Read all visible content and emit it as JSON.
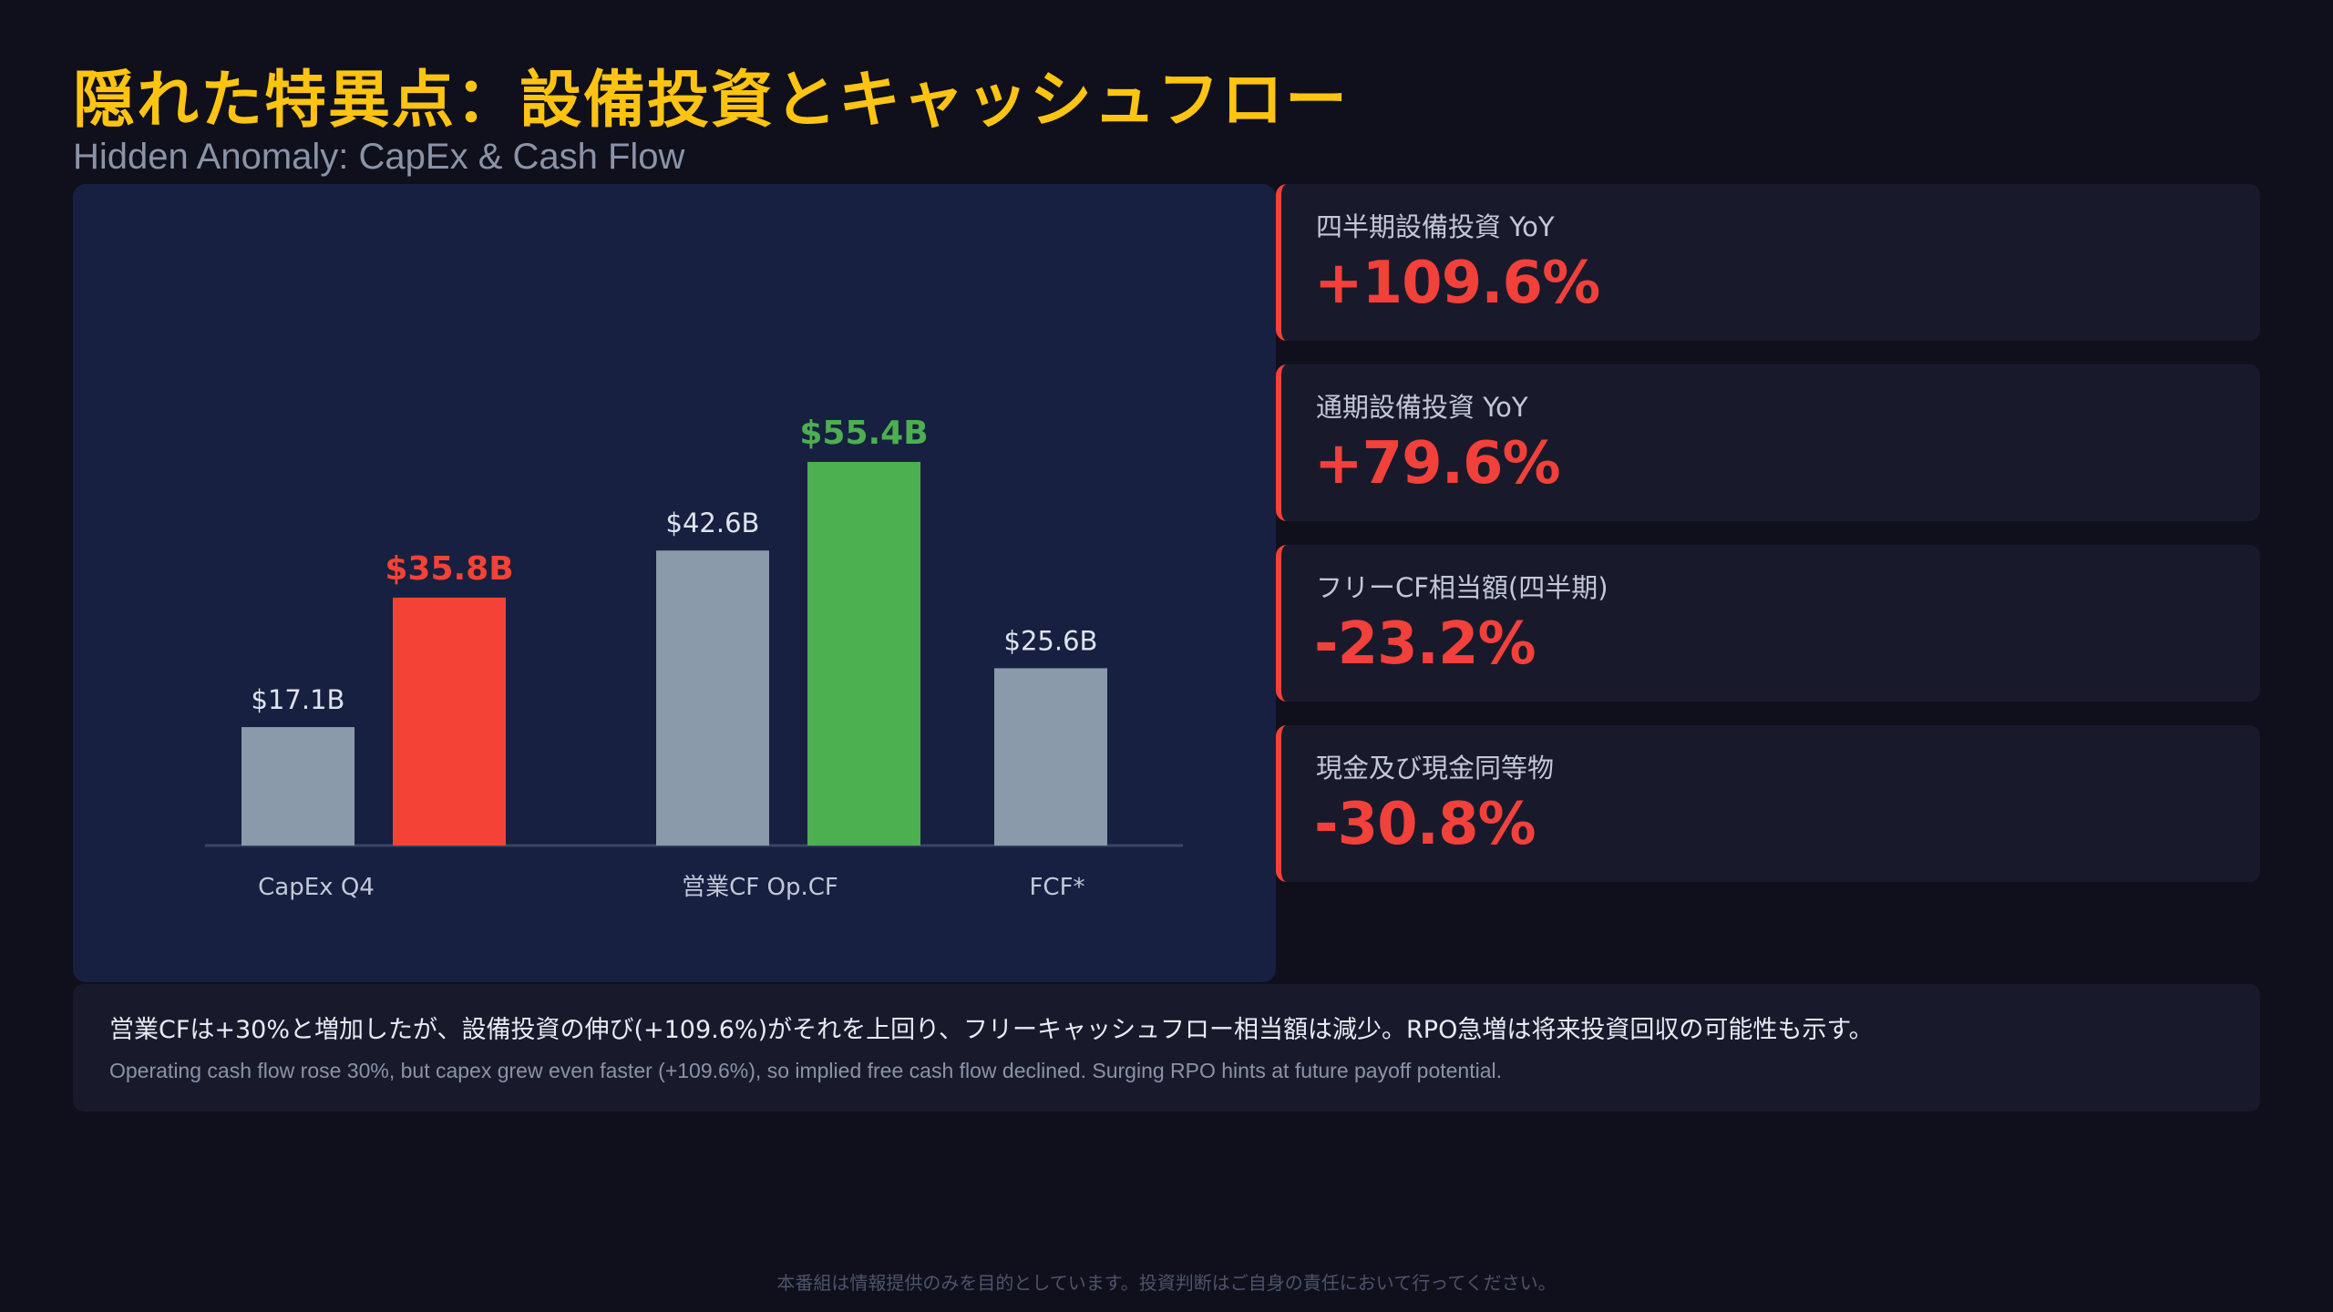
{
  "title": "隠れた特異点：設備投資とキャッシュフロー",
  "subtitle": "Hidden Anomaly: CapEx & Cash Flow",
  "colors": {
    "background": "#0f101c",
    "panel": "#172040",
    "card": "#181a2c",
    "title": "#ffc412",
    "prior_bar": "#8a9aaa",
    "capex_bar": "#f44336",
    "opcf_bar": "#4caf50",
    "negative": "#f2403a"
  },
  "chart_data": {
    "type": "bar",
    "categories": [
      "CapEx Q4",
      "営業CF Op.CF",
      "FCF*"
    ],
    "series": [
      {
        "values": [
          17.1,
          42.6,
          25.6
        ],
        "labels": [
          "$17.1B",
          "$42.6B",
          "$25.6B"
        ],
        "color": "#8a9aaa"
      },
      {
        "values": [
          35.8,
          55.4,
          null
        ],
        "labels": [
          "$35.8B",
          "$55.4B",
          ""
        ],
        "colors": [
          "#f44336",
          "#4caf50",
          ""
        ]
      }
    ],
    "unit": "$B",
    "ylim": [
      0,
      70
    ],
    "grid": false,
    "legend": "none"
  },
  "kpis": [
    {
      "label": "四半期設備投資 YoY",
      "value": "+109.6%"
    },
    {
      "label": "通期設備投資 YoY",
      "value": "+79.6%"
    },
    {
      "label": "フリーCF相当額(四半期)",
      "value": "-23.2%"
    },
    {
      "label": "現金及び現金同等物",
      "value": "-30.8%"
    }
  ],
  "note": {
    "ja": "営業CFは+30%と増加したが、設備投資の伸び(+109.6%)がそれを上回り、フリーキャッシュフロー相当額は減少。RPO急増は将来投資回収の可能性も示す。",
    "en": "Operating cash flow rose 30%, but capex grew even faster (+109.6%), so implied free cash flow declined. Surging RPO hints at future payoff potential."
  },
  "disclaimer": "本番組は情報提供のみを目的としています。投資判断はご自身の責任において行ってください。"
}
